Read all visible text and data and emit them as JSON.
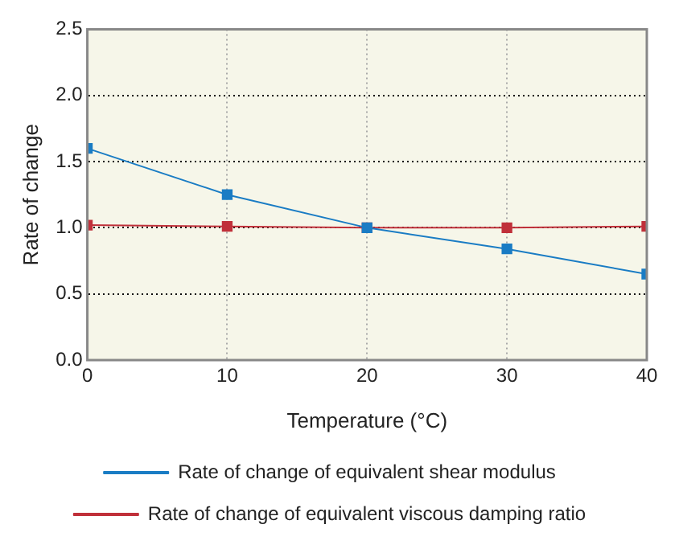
{
  "chart_data": {
    "type": "line",
    "xlabel": "Temperature (°C)",
    "ylabel": "Rate of change",
    "x": [
      0,
      10,
      20,
      30,
      40
    ],
    "xlim": [
      0,
      40
    ],
    "xticks": [
      0,
      10,
      20,
      30,
      40
    ],
    "ylim": [
      0,
      2.5
    ],
    "yticks": [
      {
        "value": 0,
        "label": "0.0"
      },
      0.5,
      {
        "value": 1,
        "label": "1.0"
      },
      1.5,
      {
        "value": 2,
        "label": "2.0"
      },
      2.5
    ],
    "grid": true,
    "legend": "bottom",
    "marker": "square",
    "line_style": "solid",
    "series": [
      {
        "name": "Rate of change of equivalent viscous damping ratio",
        "color": "#c0303a",
        "values": [
          1.02,
          1.01,
          1.0,
          1.0,
          1.01
        ]
      },
      {
        "name": "Rate of change of equivalent shear modulus",
        "color": "#1a7cc4",
        "values": [
          1.6,
          1.25,
          1.0,
          0.84,
          0.65
        ]
      }
    ]
  }
}
